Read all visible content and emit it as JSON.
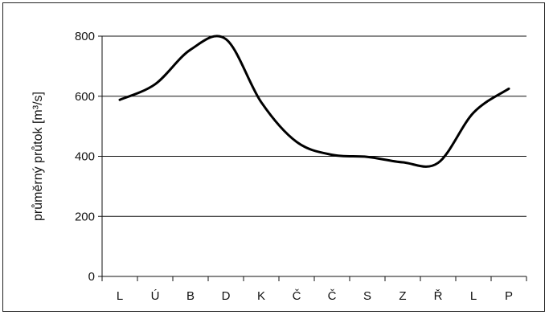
{
  "chart_data": {
    "type": "line",
    "title": "",
    "xlabel": "",
    "ylabel": "průměrný průtok [m³/s]",
    "categories": [
      "L",
      "Ú",
      "B",
      "D",
      "K",
      "Č",
      "Č",
      "S",
      "Z",
      "Ř",
      "L",
      "P"
    ],
    "series": [
      {
        "values": [
          588,
          640,
          755,
          790,
          580,
          448,
          405,
          398,
          380,
          378,
          545,
          625
        ],
        "color": "#000000"
      }
    ],
    "ylim": [
      0,
      800
    ],
    "yticks": [
      0,
      200,
      400,
      600,
      800
    ],
    "ytick_labels": [
      "0",
      "200",
      "400",
      "600",
      "800"
    ],
    "grid": true,
    "legend": "none"
  }
}
